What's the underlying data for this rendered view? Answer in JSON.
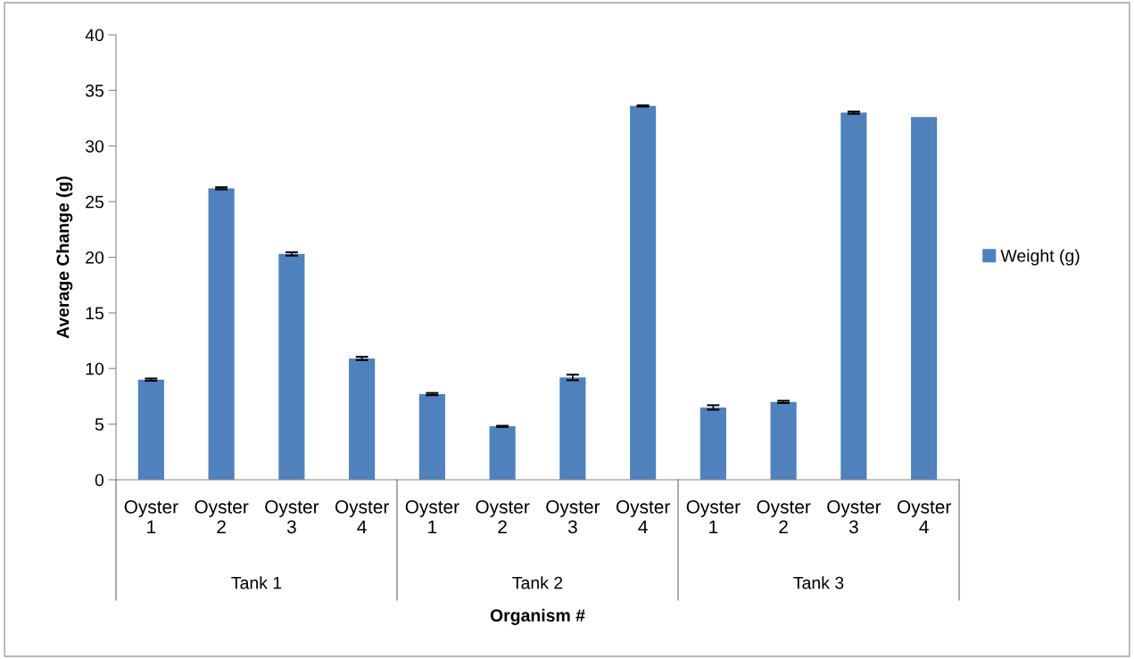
{
  "chart_data": {
    "type": "bar",
    "xlabel": "Organism #",
    "ylabel": "Average Change (g)",
    "categories": [
      "Oyster 1",
      "Oyster 2",
      "Oyster 3",
      "Oyster 4",
      "Oyster 1",
      "Oyster 2",
      "Oyster 3",
      "Oyster 4",
      "Oyster 1",
      "Oyster 2",
      "Oyster 3",
      "Oyster 4"
    ],
    "series": [
      {
        "name": "Weight (g)",
        "color": "#4f81bd",
        "values": [
          9.0,
          26.2,
          20.3,
          10.9,
          7.7,
          4.8,
          9.2,
          33.6,
          6.5,
          7.0,
          33.0,
          32.6
        ],
        "errors": [
          0.1,
          0.1,
          0.15,
          0.15,
          0.1,
          0.05,
          0.25,
          0.05,
          0.2,
          0.1,
          0.1,
          null
        ]
      }
    ],
    "annotations": [
      "Tank 1",
      "Tank 2",
      "Tank 3"
    ],
    "ylim": [
      0,
      40
    ],
    "yticks": [
      0,
      5,
      10,
      15,
      20,
      25,
      30,
      35,
      40
    ],
    "grid": false,
    "legend": "right"
  }
}
